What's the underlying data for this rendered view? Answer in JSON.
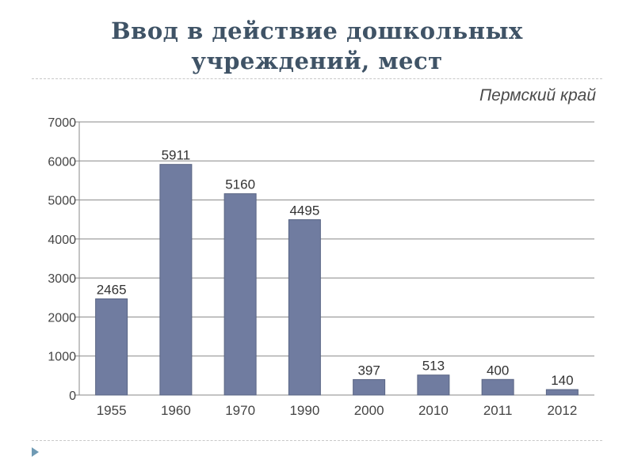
{
  "slide": {
    "title_line1": "Ввод в действие дошкольных",
    "title_line2": "учреждений, мест",
    "region": "Пермский край"
  },
  "colors": {
    "bar": "#707ca0",
    "bar_edge": "#5a6584",
    "title": "#3f5366",
    "grid": "#888888"
  },
  "chart_data": {
    "type": "bar",
    "categories": [
      "1955",
      "1960",
      "1970",
      "1990",
      "2000",
      "2010",
      "2011",
      "2012"
    ],
    "values": [
      2465,
      5911,
      5160,
      4495,
      397,
      513,
      400,
      140
    ],
    "data_labels": [
      "2465",
      "5911",
      "5160",
      "4495",
      "397",
      "513",
      "400",
      "140"
    ],
    "yticks": [
      "0",
      "1000",
      "2000",
      "3000",
      "4000",
      "5000",
      "6000",
      "7000"
    ],
    "ylim": [
      0,
      7000
    ],
    "grid": true,
    "legend": "none"
  }
}
